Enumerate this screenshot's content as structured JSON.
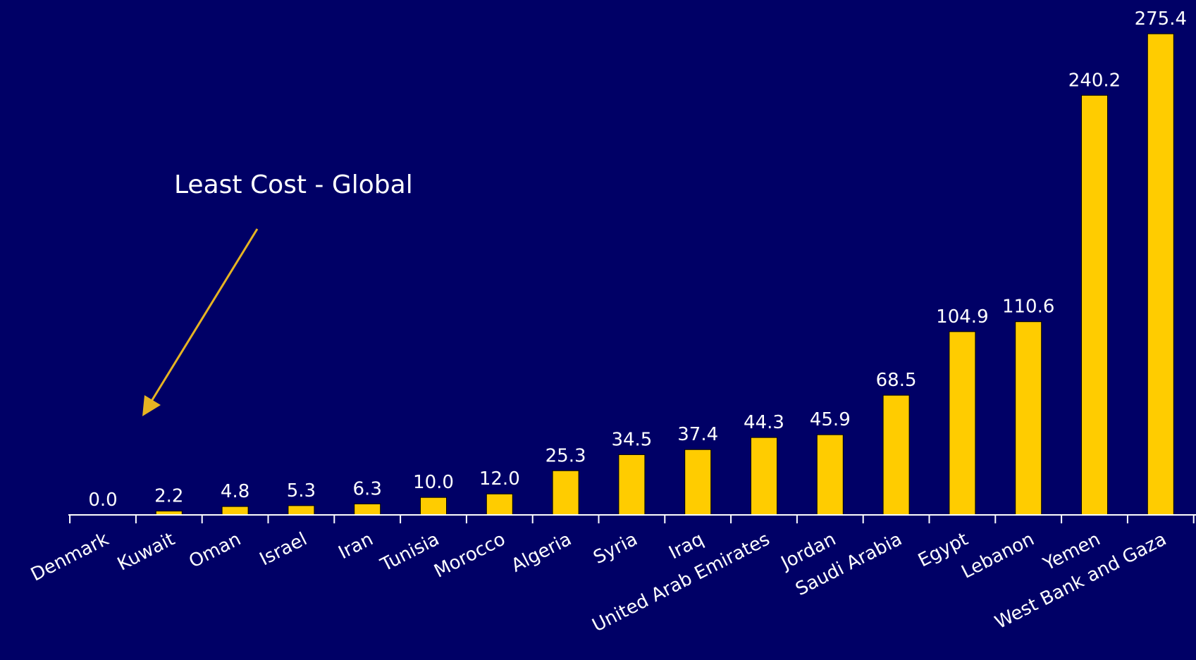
{
  "chart_data": {
    "type": "bar",
    "categories": [
      "Denmark",
      "Kuwait",
      "Oman",
      "Israel",
      "Iran",
      "Tunisia",
      "Morocco",
      "Algeria",
      "Syria",
      "Iraq",
      "United Arab Emirates",
      "Jordan",
      "Saudi Arabia",
      "Egypt",
      "Lebanon",
      "Yemen",
      "West Bank and Gaza"
    ],
    "values": [
      0.0,
      2.2,
      4.8,
      5.3,
      6.3,
      10.0,
      12.0,
      25.3,
      34.5,
      37.4,
      44.3,
      45.9,
      68.5,
      104.9,
      110.6,
      240.2,
      275.4
    ],
    "value_labels": [
      "0.0",
      "2.2",
      "4.8",
      "5.3",
      "6.3",
      "10.0",
      "12.0",
      "25.3",
      "34.5",
      "37.4",
      "44.3",
      "45.9",
      "68.5",
      "104.9",
      "110.6",
      "240.2",
      "275.4"
    ],
    "annotation": {
      "text": "Least Cost - Global",
      "points_to": "Denmark"
    },
    "ylim": [
      0,
      275.4
    ],
    "grid": false,
    "legend": "none"
  },
  "colors": {
    "background": "#000066",
    "bar": "#FFCC00",
    "bar_outline": "#000000",
    "axis": "#FFFFFF",
    "text": "#FFFFFF",
    "arrow": "#E6B422"
  }
}
